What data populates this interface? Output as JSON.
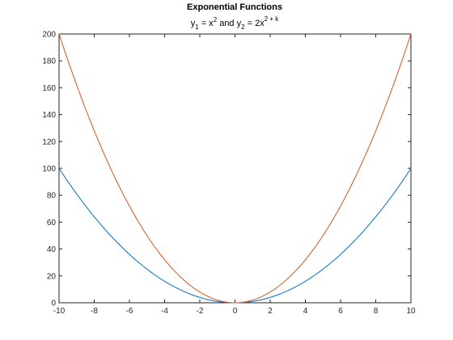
{
  "chart_data": {
    "type": "line",
    "title": "Exponential Functions",
    "subtitle": {
      "y1_var": "y",
      "y1_sub": "1",
      "y1_rhs": " = x",
      "y1_sup": "2",
      "joiner": " and ",
      "y2_var": "y",
      "y2_sub": "2",
      "y2_rhs": " = 2x",
      "y2_sup": "2 + k"
    },
    "xlabel": "",
    "ylabel": "",
    "xlim": [
      -10,
      10
    ],
    "ylim": [
      0,
      200
    ],
    "x_ticks": [
      -10,
      -8,
      -6,
      -4,
      -2,
      0,
      2,
      4,
      6,
      8,
      10
    ],
    "y_ticks": [
      0,
      20,
      40,
      60,
      80,
      100,
      120,
      140,
      160,
      180,
      200
    ],
    "grid": false,
    "x": [
      -10,
      -9,
      -8,
      -7,
      -6,
      -5,
      -4,
      -3,
      -2,
      -1,
      0,
      1,
      2,
      3,
      4,
      5,
      6,
      7,
      8,
      9,
      10
    ],
    "series": [
      {
        "color": "#0072BD",
        "values": [
          100,
          81,
          64,
          49,
          36,
          25,
          16,
          9,
          4,
          1,
          0,
          1,
          4,
          9,
          16,
          25,
          36,
          49,
          64,
          81,
          100
        ]
      },
      {
        "color": "#D95319",
        "values": [
          200,
          162,
          128,
          98,
          72,
          50,
          32,
          18,
          8,
          2,
          0,
          2,
          8,
          18,
          32,
          50,
          72,
          98,
          128,
          162,
          200
        ]
      }
    ]
  }
}
